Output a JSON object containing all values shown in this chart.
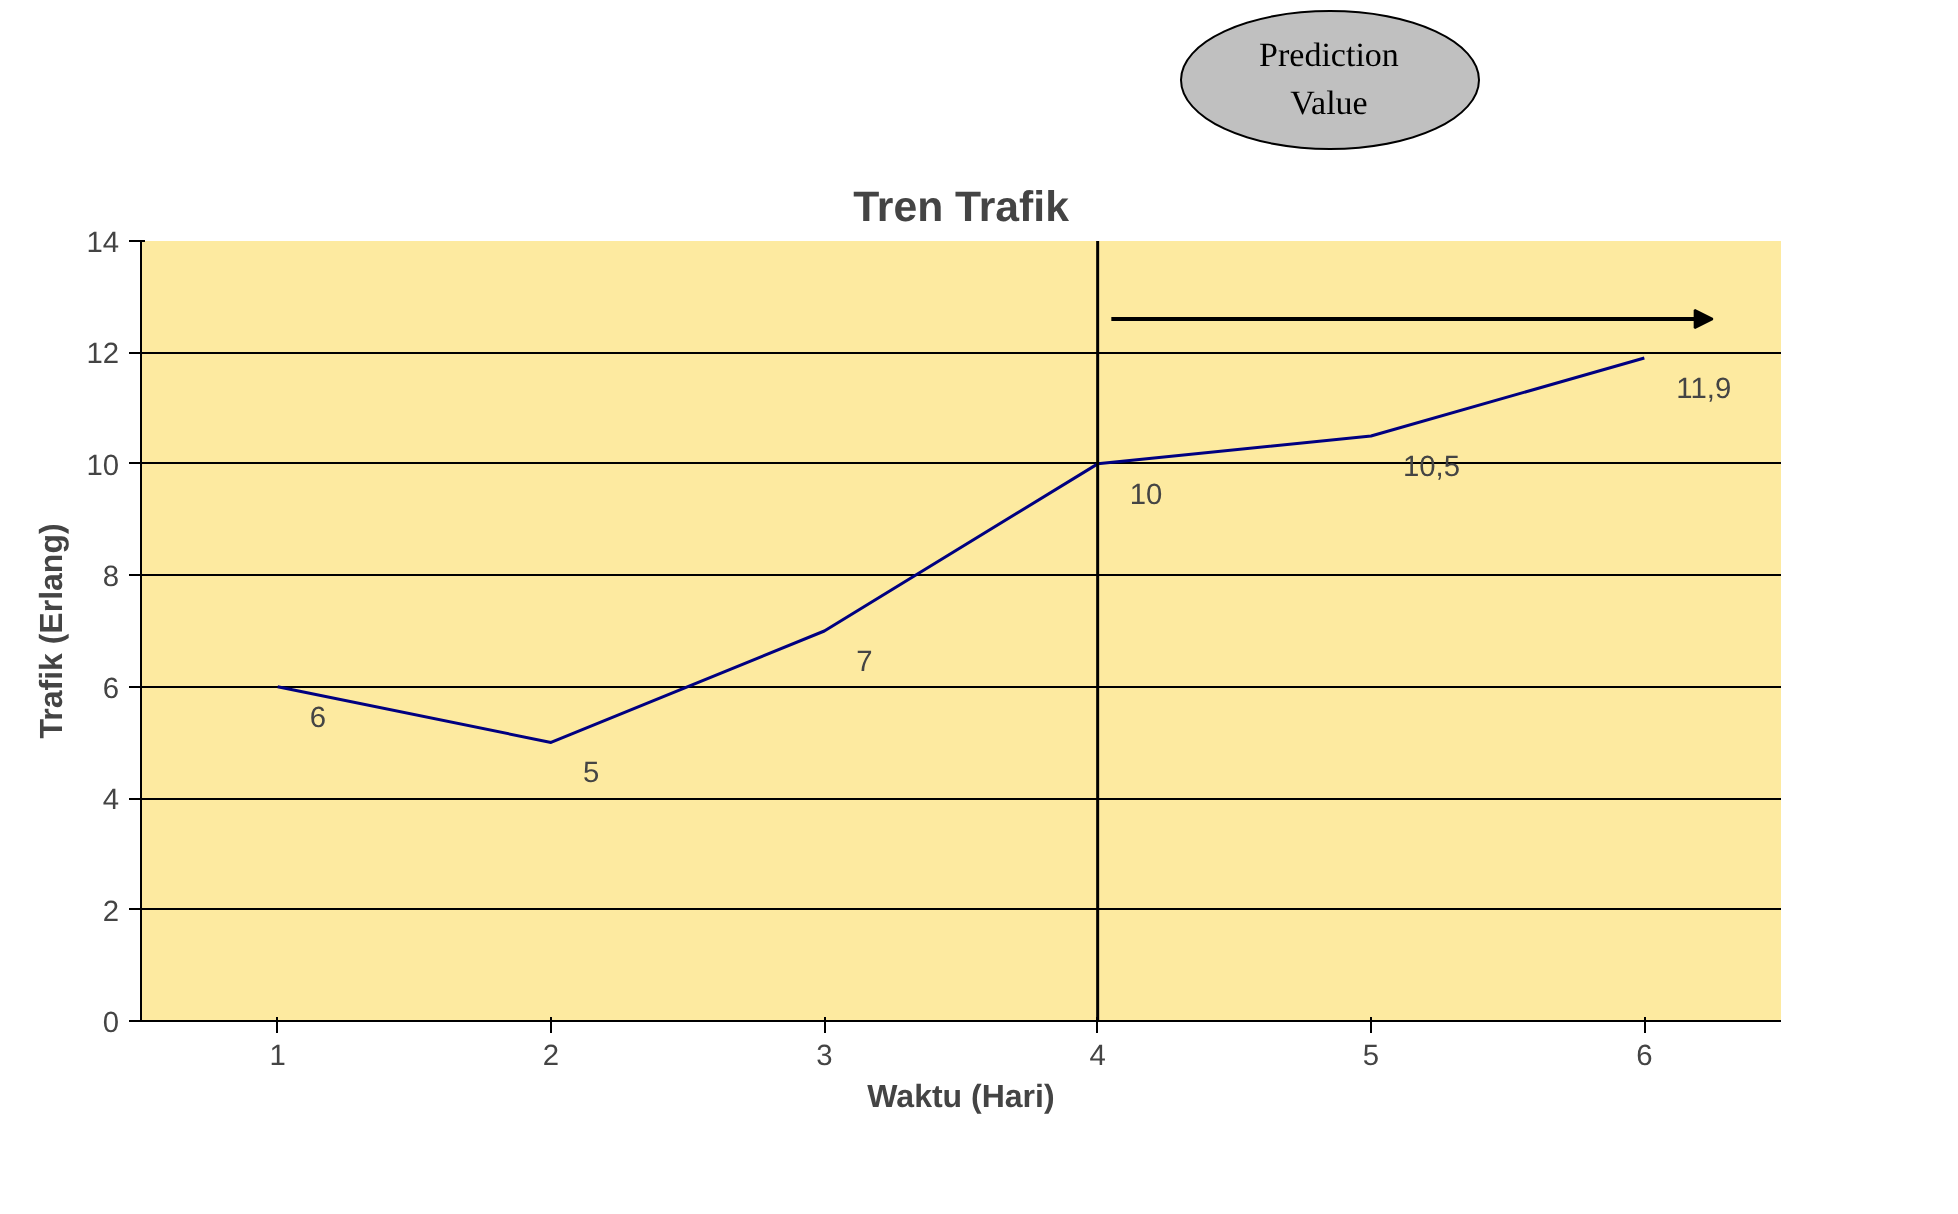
{
  "chart_data": {
    "type": "line",
    "title": "Tren Trafik",
    "xlabel": "Waktu (Hari)",
    "ylabel": "Trafik (Erlang)",
    "categories": [
      "1",
      "2",
      "3",
      "4",
      "5",
      "6"
    ],
    "series": [
      {
        "color": "#000080",
        "values": [
          6,
          5,
          7,
          10,
          10.5,
          11.9
        ],
        "value_labels": [
          "6",
          "5",
          "7",
          "10",
          "10,5",
          "11,9"
        ]
      }
    ],
    "ylim": [
      0,
      14
    ],
    "yticks": [
      0,
      2,
      4,
      6,
      8,
      10,
      12,
      14
    ],
    "grid": "y",
    "marker": "none",
    "line_style": "solid",
    "ref_lines": [
      {
        "axis": "x",
        "value": "4",
        "color": "#000000"
      }
    ],
    "annotations": [
      "Prediction Value"
    ]
  }
}
